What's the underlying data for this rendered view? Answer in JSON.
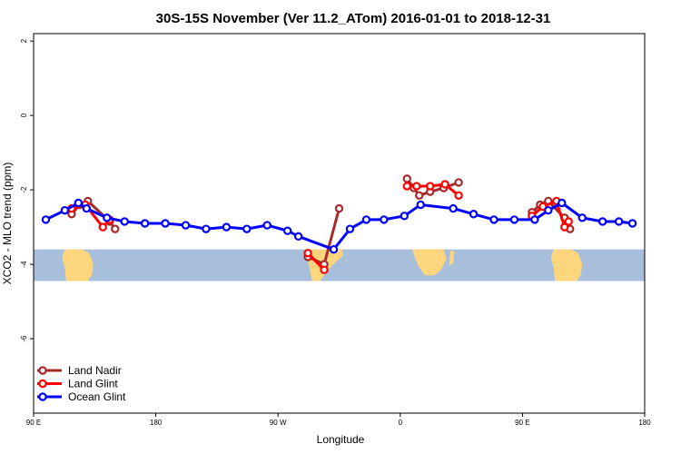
{
  "chart_data": {
    "type": "line",
    "title": "30S-15S November (Ver 11.2_ATom)   2016-01-01 to 2018-12-31",
    "xlabel": "Longitude",
    "ylabel": "XCO2 - MLO trend (ppm)",
    "xlim": [
      90,
      540
    ],
    "ylim": [
      -8,
      2.2
    ],
    "x_ticks": [
      {
        "value": 90,
        "label": "90 E"
      },
      {
        "value": 180,
        "label": "180"
      },
      {
        "value": 270,
        "label": "90 W"
      },
      {
        "value": 360,
        "label": "0"
      },
      {
        "value": 450,
        "label": "90 E"
      },
      {
        "value": 540,
        "label": "180"
      }
    ],
    "y_ticks": [
      {
        "value": 2,
        "label": "2"
      },
      {
        "value": 0,
        "label": "0"
      },
      {
        "value": -2,
        "label": "-2"
      },
      {
        "value": -4,
        "label": "-4"
      },
      {
        "value": -6,
        "label": "-6"
      }
    ],
    "map_band": {
      "y_top": -3.6,
      "y_bottom": -4.45,
      "ocean_color": "#a8bfdc",
      "land_color": "#fcd57c"
    },
    "legend_position": "bottom-left",
    "series": [
      {
        "name": "Land Nadir",
        "color": "#a52a2a",
        "segments": [
          [
            [
              118,
              -2.65
            ],
            [
              124,
              -2.4
            ],
            [
              130,
              -2.3
            ],
            [
              146,
              -2.85
            ],
            [
              150,
              -3.05
            ]
          ],
          [
            [
              292,
              -3.8
            ],
            [
              304,
              -4.0
            ],
            [
              315,
              -2.5
            ]
          ],
          [
            [
              365,
              -1.7
            ],
            [
              370,
              -1.95
            ],
            [
              374,
              -2.15
            ],
            [
              382,
              -2.05
            ],
            [
              392,
              -1.95
            ],
            [
              403,
              -1.8
            ]
          ],
          [
            [
              457,
              -2.6
            ],
            [
              463,
              -2.4
            ],
            [
              469,
              -2.3
            ],
            [
              481,
              -2.75
            ],
            [
              485,
              -3.05
            ]
          ]
        ]
      },
      {
        "name": "Land Glint",
        "color": "#ff0000",
        "segments": [
          [
            [
              118,
              -2.5
            ],
            [
              128,
              -2.4
            ],
            [
              141,
              -3.0
            ],
            [
              146,
              -2.8
            ]
          ],
          [
            [
              292,
              -3.7
            ],
            [
              304,
              -4.15
            ]
          ],
          [
            [
              365,
              -1.9
            ],
            [
              372,
              -1.9
            ],
            [
              382,
              -1.9
            ],
            [
              393,
              -1.85
            ],
            [
              403,
              -2.15
            ]
          ],
          [
            [
              457,
              -2.7
            ],
            [
              465,
              -2.45
            ],
            [
              475,
              -2.3
            ],
            [
              481,
              -3.0
            ],
            [
              484,
              -2.85
            ]
          ]
        ]
      },
      {
        "name": "Ocean Glint",
        "color": "#0000ff",
        "segments": [
          [
            [
              99,
              -2.8
            ],
            [
              113,
              -2.55
            ],
            [
              123,
              -2.35
            ],
            [
              129,
              -2.5
            ],
            [
              144,
              -2.75
            ],
            [
              157,
              -2.85
            ],
            [
              172,
              -2.9
            ],
            [
              187,
              -2.9
            ],
            [
              202,
              -2.95
            ],
            [
              217,
              -3.05
            ],
            [
              232,
              -3.0
            ],
            [
              247,
              -3.05
            ],
            [
              262,
              -2.95
            ],
            [
              277,
              -3.1
            ],
            [
              285,
              -3.25
            ],
            [
              311,
              -3.6
            ],
            [
              323,
              -3.05
            ],
            [
              335,
              -2.8
            ],
            [
              348,
              -2.8
            ],
            [
              363,
              -2.7
            ],
            [
              375,
              -2.4
            ],
            [
              399,
              -2.5
            ],
            [
              414,
              -2.65
            ],
            [
              429,
              -2.8
            ],
            [
              444,
              -2.8
            ],
            [
              459,
              -2.8
            ],
            [
              469,
              -2.55
            ],
            [
              479,
              -2.35
            ],
            [
              494,
              -2.75
            ],
            [
              509,
              -2.85
            ],
            [
              521,
              -2.85
            ],
            [
              531,
              -2.9
            ]
          ]
        ]
      }
    ]
  }
}
